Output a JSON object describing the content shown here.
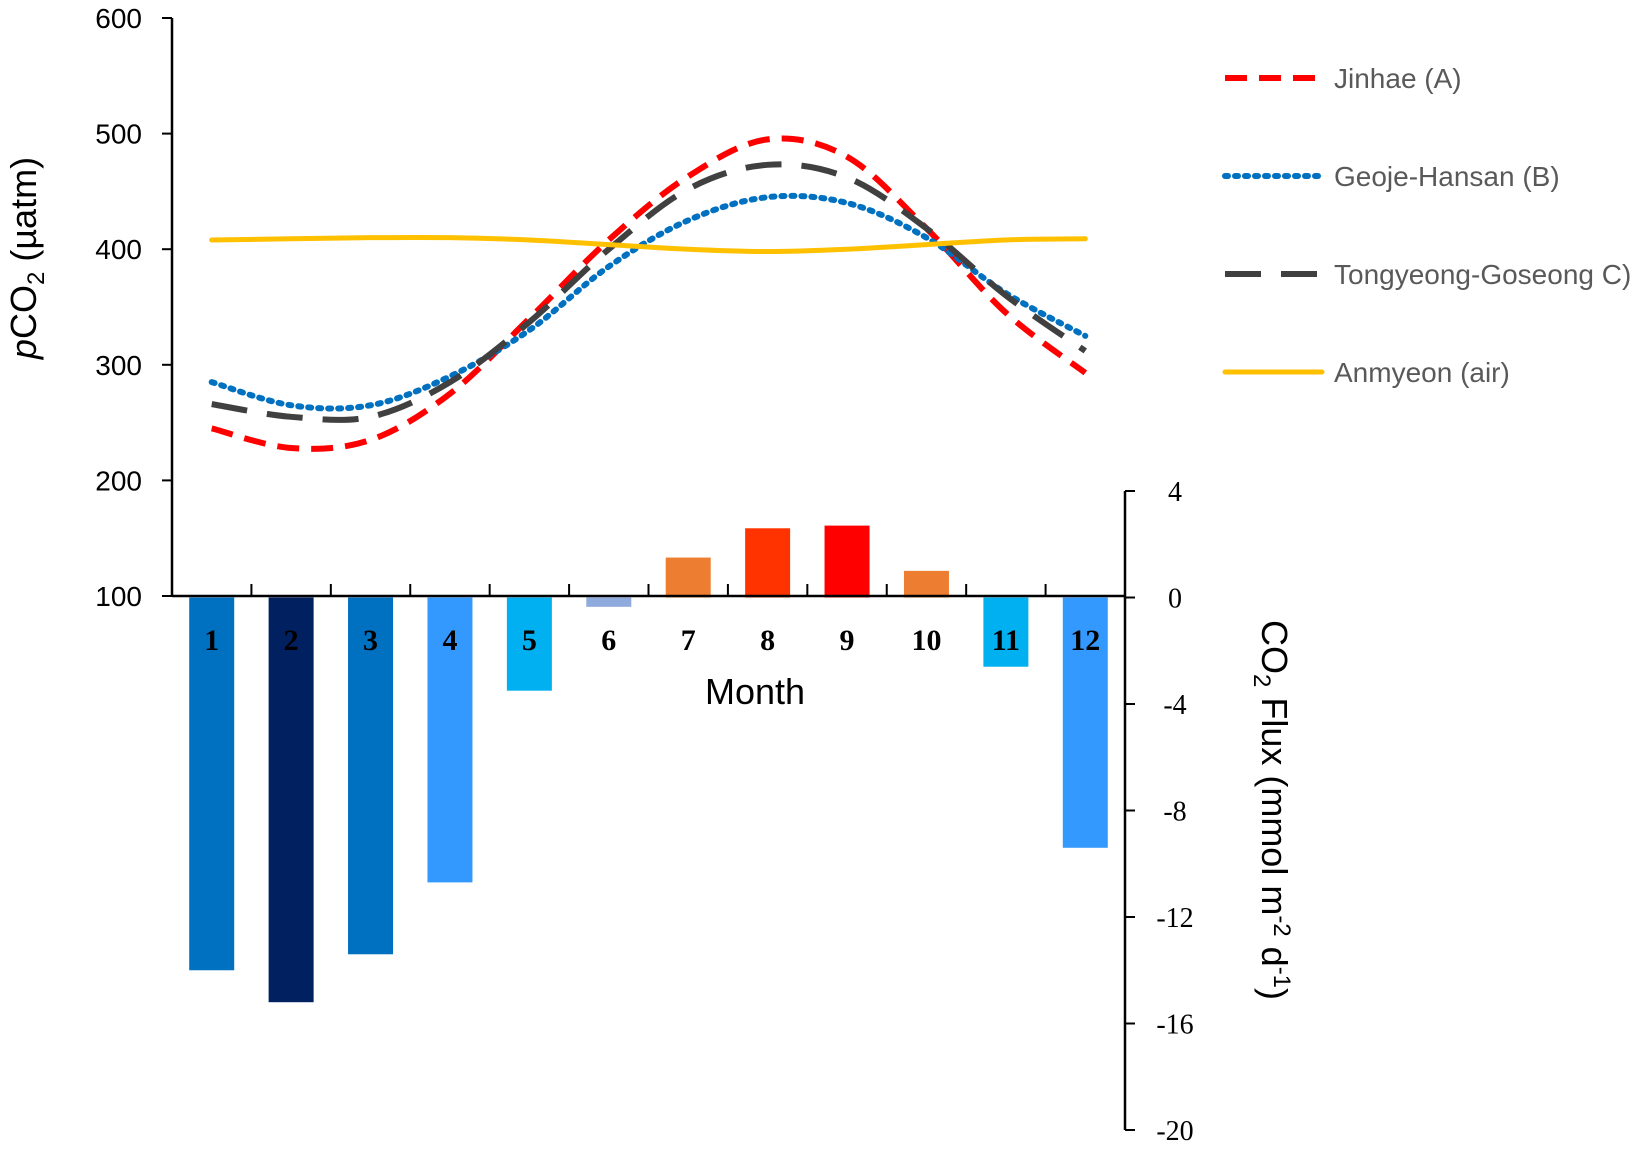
{
  "chart_data": {
    "type": "line+bar",
    "months": [
      "1",
      "2",
      "3",
      "4",
      "5",
      "6",
      "7",
      "8",
      "9",
      "10",
      "11",
      "12"
    ],
    "xlabel": "Month",
    "left_axis": {
      "label_prefix": "p",
      "label_main": "CO",
      "label_sub": "2",
      "label_suffix": " (µatm)",
      "ylim": [
        100,
        600
      ],
      "ticks": [
        "100",
        "200",
        "300",
        "400",
        "500",
        "600"
      ]
    },
    "right_axis": {
      "label_main": "CO",
      "label_sub": "2",
      "label_mid": " Flux (mmol m",
      "label_sup1": "-2",
      "label_mid2": " d",
      "label_sup2": "-1",
      "label_end": ")",
      "ylim": [
        -20,
        4
      ],
      "ticks": [
        "4",
        "0",
        "-4",
        "-8",
        "-12",
        "-16",
        "-20"
      ]
    },
    "series": [
      {
        "name": "Jinhae (A)",
        "color": "#ff0000",
        "style": "dashed",
        "values": [
          245,
          228,
          235,
          275,
          340,
          408,
          463,
          495,
          480,
          418,
          345,
          293
        ]
      },
      {
        "name": "Geoje-Hansan (B)",
        "color": "#0070c0",
        "style": "dotted",
        "values": [
          285,
          265,
          265,
          290,
          330,
          385,
          425,
          445,
          440,
          410,
          362,
          325
        ]
      },
      {
        "name": "Tongyeong-Goseong C)",
        "color": "#404040",
        "style": "long-dash",
        "values": [
          266,
          255,
          255,
          285,
          337,
          400,
          452,
          473,
          462,
          418,
          360,
          312
        ]
      },
      {
        "name": "Anmyeon (air)",
        "color": "#ffc000",
        "style": "solid",
        "values": [
          408,
          409,
          410,
          410,
          408,
          404,
          400,
          398,
          400,
          404,
          408,
          409
        ]
      }
    ],
    "bars": {
      "name": "CO2 Flux",
      "values": [
        -14.0,
        -15.2,
        -13.4,
        -10.7,
        -3.5,
        -0.35,
        1.5,
        2.6,
        2.7,
        1.0,
        -2.6,
        -9.4
      ],
      "colors": [
        "#0070c0",
        "#002060",
        "#0070c0",
        "#3399ff",
        "#00b0f0",
        "#8faadc",
        "#ed7d31",
        "#ff3300",
        "#ff0000",
        "#ed7d31",
        "#00b0f0",
        "#3399ff"
      ],
      "label_colors": [
        "#000000",
        "#000000",
        "#000000",
        "#000000",
        "#000000",
        "#000000",
        "#000000",
        "#000000",
        "#000000",
        "#000000",
        "#000000",
        "#000000"
      ]
    }
  }
}
